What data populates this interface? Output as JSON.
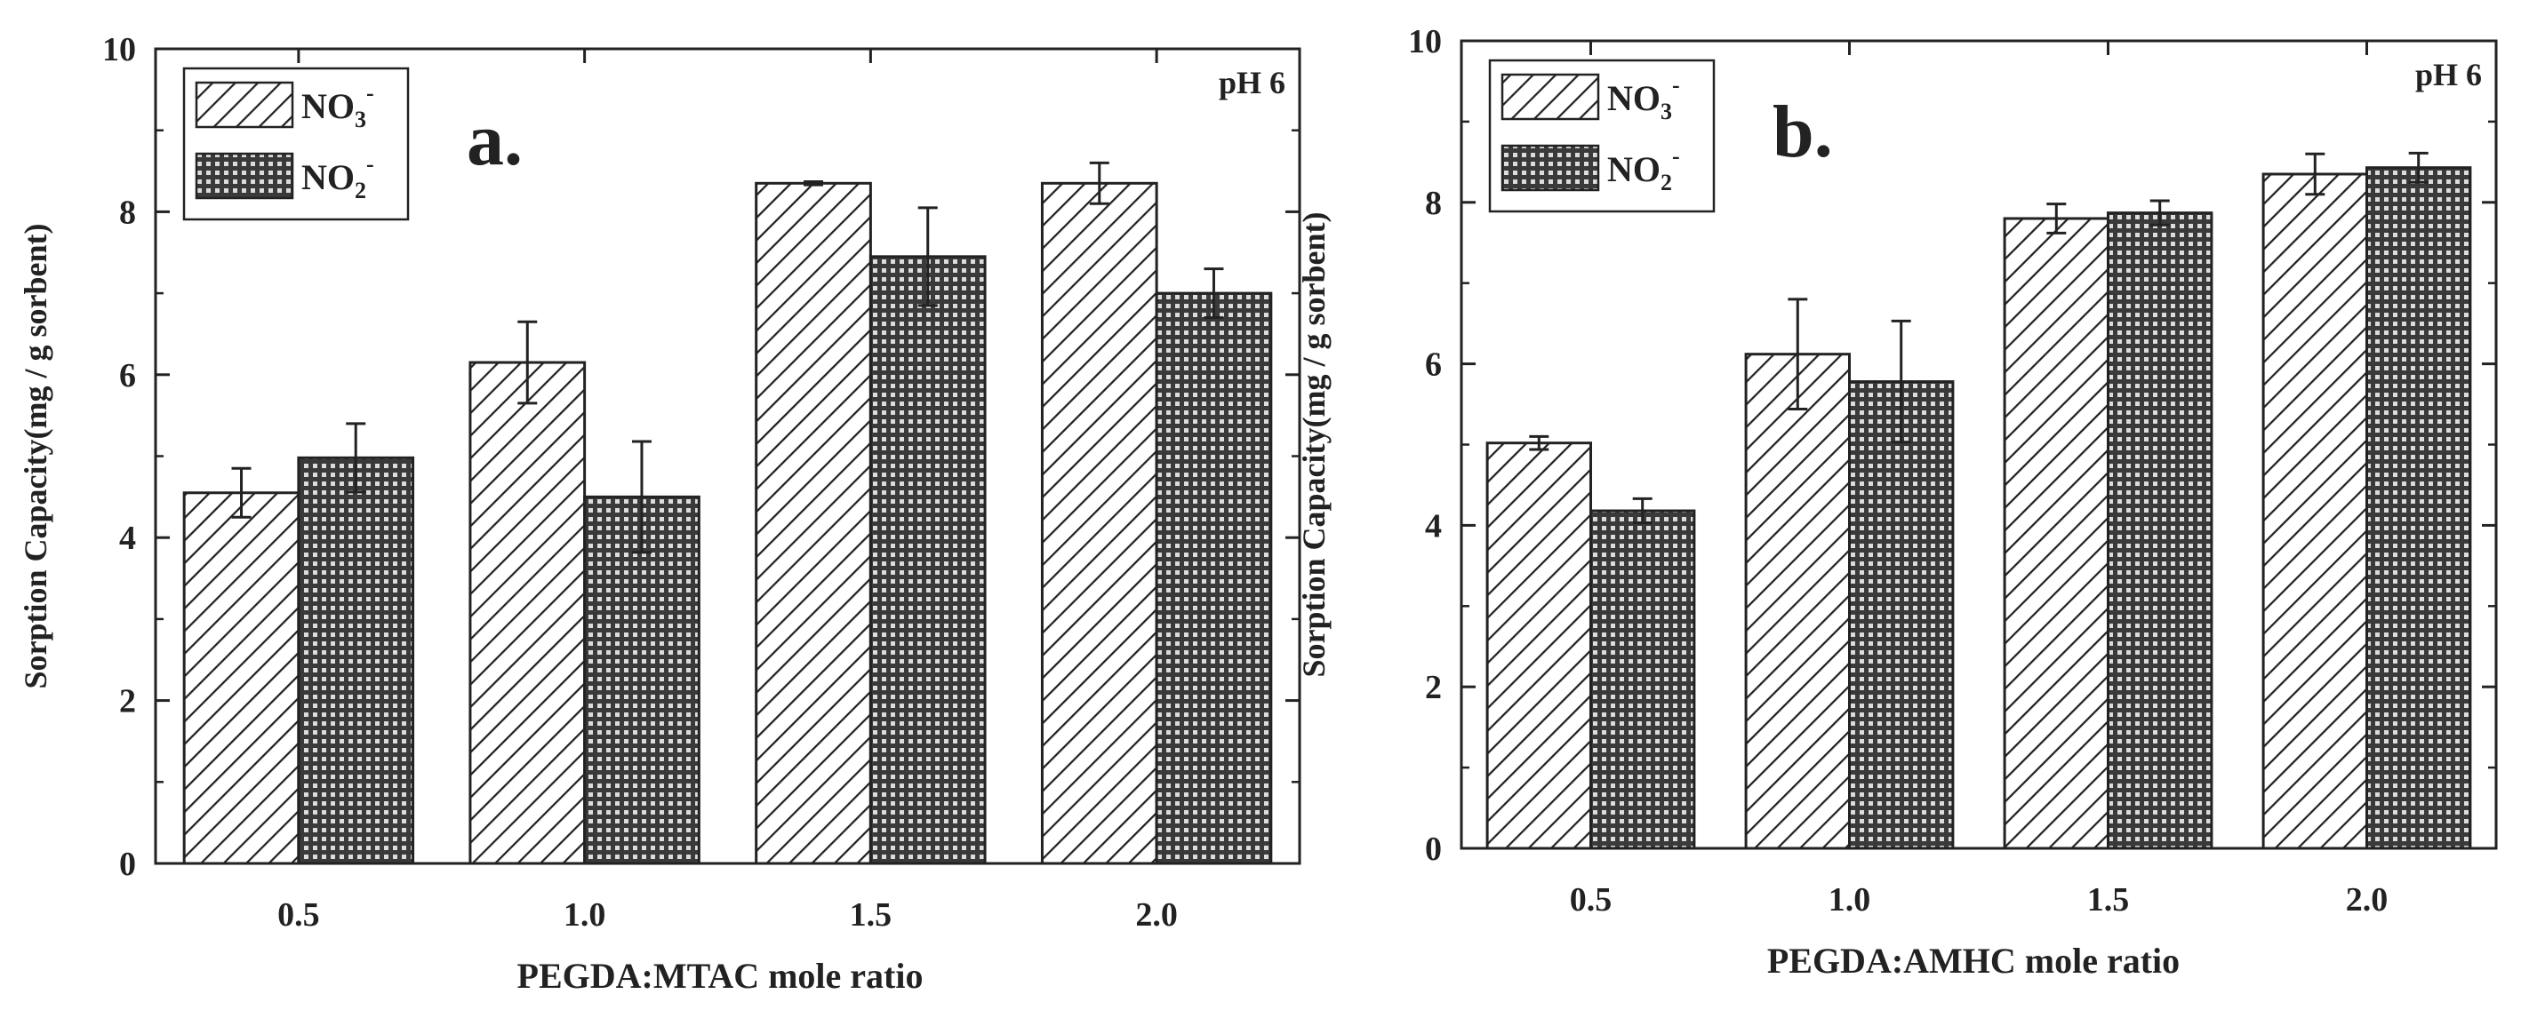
{
  "chart_data": [
    {
      "panel": "a.",
      "type": "bar",
      "annotation": "pH 6",
      "categories": [
        "0.5",
        "1.0",
        "1.5",
        "2.0"
      ],
      "xlabel": "PEGDA:MTAC mole ratio",
      "ylabel": "Sorption Capacity(mg / g sorbent)",
      "ylim": [
        0,
        10
      ],
      "yticks": [
        "0",
        "2",
        "4",
        "6",
        "8",
        "10"
      ],
      "legend_position": "top-left",
      "series": [
        {
          "name": "NO3-",
          "label_base": "NO",
          "label_sub": "3",
          "label_sup": "-",
          "pattern": "diagonal-hatch",
          "values": [
            4.55,
            6.15,
            8.35,
            8.35
          ],
          "errors": [
            0.3,
            0.5,
            0.02,
            0.25
          ]
        },
        {
          "name": "NO2-",
          "label_base": "NO",
          "label_sub": "2",
          "label_sup": "-",
          "pattern": "crosshatch",
          "values": [
            4.98,
            4.5,
            7.45,
            7.0
          ],
          "errors": [
            0.42,
            0.68,
            0.6,
            0.3
          ]
        }
      ]
    },
    {
      "panel": "b.",
      "type": "bar",
      "annotation": "pH 6",
      "categories": [
        "0.5",
        "1.0",
        "1.5",
        "2.0"
      ],
      "xlabel": "PEGDA:AMHC mole ratio",
      "ylabel": "Sorption Capacity(mg / g sorbent)",
      "ylim": [
        0,
        10
      ],
      "yticks": [
        "0",
        "2",
        "4",
        "6",
        "8",
        "10"
      ],
      "legend_position": "top-left",
      "series": [
        {
          "name": "NO3-",
          "label_base": "NO",
          "label_sub": "3",
          "label_sup": "-",
          "pattern": "diagonal-hatch",
          "values": [
            5.02,
            6.12,
            7.8,
            8.35
          ],
          "errors": [
            0.08,
            0.68,
            0.18,
            0.25
          ]
        },
        {
          "name": "NO2-",
          "label_base": "NO",
          "label_sub": "2",
          "label_sup": "-",
          "pattern": "crosshatch",
          "values": [
            4.18,
            5.78,
            7.87,
            8.43
          ],
          "errors": [
            0.15,
            0.75,
            0.15,
            0.18
          ]
        }
      ]
    }
  ],
  "colors": {
    "ink": "#222222",
    "fill": "#ffffff",
    "background": "#ffffff"
  }
}
